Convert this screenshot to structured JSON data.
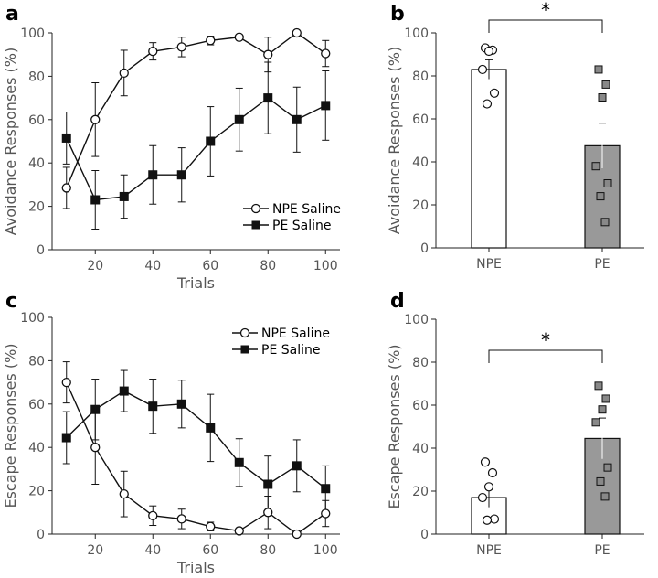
{
  "chart_data": [
    {
      "id": "a",
      "type": "line",
      "panel_label": "a",
      "xlabel": "Trials",
      "ylabel": "Avoidance Responses (%)",
      "xlim": [
        5,
        105
      ],
      "ylim": [
        0,
        100
      ],
      "xticks": [
        20,
        40,
        60,
        80,
        100
      ],
      "yticks": [
        0,
        20,
        40,
        60,
        80,
        100
      ],
      "legend_position": "bottom-right",
      "x": [
        10,
        20,
        30,
        40,
        50,
        60,
        70,
        80,
        90,
        100
      ],
      "series": [
        {
          "name": "NPE Saline",
          "marker": "open-circle",
          "values": [
            28.5,
            60,
            81.5,
            91.5,
            93.5,
            96.5,
            98,
            90,
            100,
            90.5
          ],
          "errors": [
            9.5,
            17,
            10.5,
            4,
            4.5,
            2,
            1,
            8,
            0,
            6
          ]
        },
        {
          "name": "PE Saline",
          "marker": "filled-square",
          "values": [
            51.5,
            23,
            24.5,
            34.5,
            34.5,
            50,
            60,
            70,
            60,
            66.5
          ],
          "errors": [
            12,
            13.5,
            10,
            13.5,
            12.5,
            16,
            14.5,
            16.5,
            15,
            16
          ]
        }
      ]
    },
    {
      "id": "b",
      "type": "bar",
      "panel_label": "b",
      "xlabel": "",
      "ylabel": "Avoidance Responses (%)",
      "ylim": [
        0,
        100
      ],
      "yticks": [
        0,
        20,
        40,
        60,
        80,
        100
      ],
      "categories": [
        "NPE",
        "PE"
      ],
      "values": [
        83,
        47.5
      ],
      "errors": [
        4.5,
        10.5
      ],
      "points": [
        [
          93,
          92,
          91.5,
          83,
          72,
          67
        ],
        [
          83,
          76,
          70,
          38,
          30,
          24,
          12
        ]
      ],
      "bar_colors": [
        "#ffffff",
        "#999999"
      ],
      "significance": "*"
    },
    {
      "id": "c",
      "type": "line",
      "panel_label": "c",
      "xlabel": "Trials",
      "ylabel": "Escape Responses (%)",
      "xlim": [
        5,
        105
      ],
      "ylim": [
        0,
        100
      ],
      "xticks": [
        20,
        40,
        60,
        80,
        100
      ],
      "yticks": [
        0,
        20,
        40,
        60,
        80,
        100
      ],
      "legend_position": "top-right",
      "x": [
        10,
        20,
        30,
        40,
        50,
        60,
        70,
        80,
        90,
        100
      ],
      "series": [
        {
          "name": "NPE Saline",
          "marker": "open-circle",
          "values": [
            70,
            40,
            18.5,
            8.5,
            7,
            3.5,
            1.5,
            10,
            0,
            9.5
          ],
          "errors": [
            9.5,
            17,
            10.5,
            4.5,
            4.5,
            2,
            1,
            7.5,
            0,
            6
          ]
        },
        {
          "name": "PE Saline",
          "marker": "filled-square",
          "values": [
            44.5,
            57.5,
            66,
            59,
            60,
            49,
            33,
            23,
            31.5,
            21
          ],
          "errors": [
            12,
            14,
            9.5,
            12.5,
            11,
            15.5,
            11,
            13,
            12,
            10.5
          ]
        }
      ]
    },
    {
      "id": "d",
      "type": "bar",
      "panel_label": "d",
      "xlabel": "",
      "ylabel": "Escape Responses (%)",
      "ylim": [
        0,
        100
      ],
      "yticks": [
        0,
        20,
        40,
        60,
        80,
        100
      ],
      "categories": [
        "NPE",
        "PE"
      ],
      "values": [
        17,
        44.5
      ],
      "errors": [
        4.5,
        9.5
      ],
      "points": [
        [
          33.5,
          28.5,
          22,
          17,
          7,
          6.5
        ],
        [
          69,
          63,
          58,
          52,
          31,
          24.5,
          17.5
        ]
      ],
      "bar_colors": [
        "#ffffff",
        "#999999"
      ],
      "significance": "*"
    }
  ]
}
